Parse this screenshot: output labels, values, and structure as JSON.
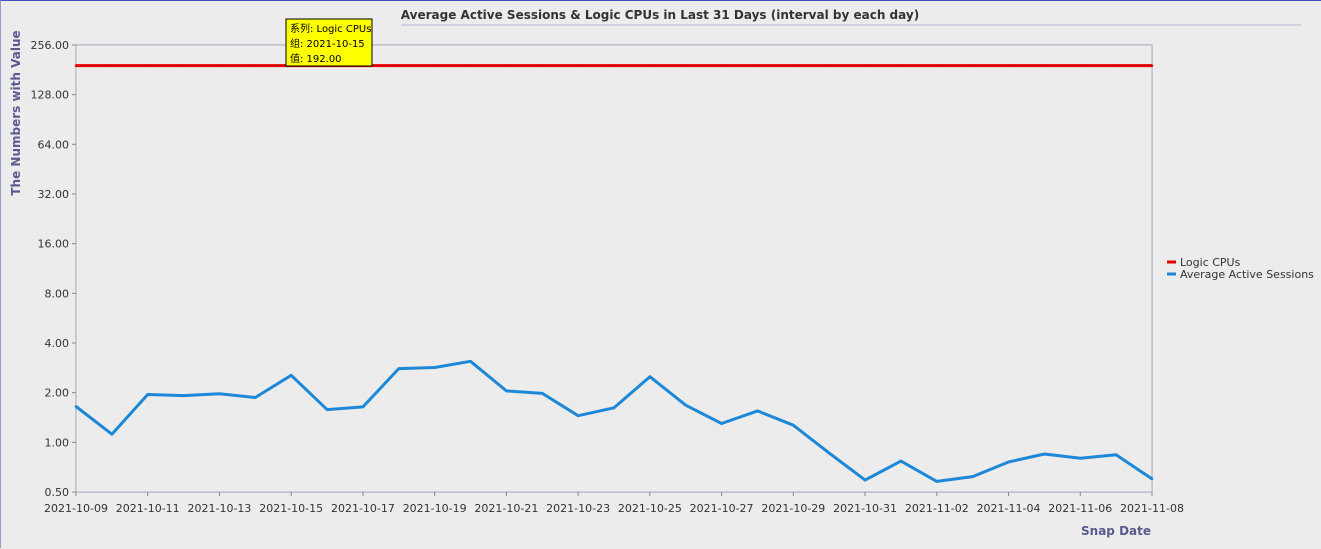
{
  "chart_data": {
    "type": "line",
    "title": "Average Active Sessions & Logic CPUs in Last 31 Days (interval by each day)",
    "xlabel": "Snap Date",
    "ylabel": "The Numbers with Value",
    "yscale": "log2",
    "ylim": [
      0.5,
      256
    ],
    "yticks": [
      "256.00",
      "128.00",
      "64.00",
      "32.00",
      "16.00",
      "8.00",
      "4.00",
      "2.00",
      "1.00",
      "0.50"
    ],
    "ytick_values": [
      256,
      128,
      64,
      32,
      16,
      8,
      4,
      2,
      1,
      0.5
    ],
    "x": [
      "2021-10-09",
      "2021-10-10",
      "2021-10-11",
      "2021-10-12",
      "2021-10-13",
      "2021-10-14",
      "2021-10-15",
      "2021-10-16",
      "2021-10-17",
      "2021-10-18",
      "2021-10-19",
      "2021-10-20",
      "2021-10-21",
      "2021-10-22",
      "2021-10-23",
      "2021-10-24",
      "2021-10-25",
      "2021-10-26",
      "2021-10-27",
      "2021-10-28",
      "2021-10-29",
      "2021-10-30",
      "2021-10-31",
      "2021-11-01",
      "2021-11-02",
      "2021-11-03",
      "2021-11-04",
      "2021-11-05",
      "2021-11-06",
      "2021-11-07",
      "2021-11-08"
    ],
    "xtick_labels": [
      "2021-10-09",
      "2021-10-11",
      "2021-10-13",
      "2021-10-15",
      "2021-10-17",
      "2021-10-19",
      "2021-10-21",
      "2021-10-23",
      "2021-10-25",
      "2021-10-27",
      "2021-10-29",
      "2021-10-31",
      "2021-11-02",
      "2021-11-04",
      "2021-11-06",
      "2021-11-08"
    ],
    "grid": true,
    "legend_position": "right",
    "series": [
      {
        "name": "Logic CPUs",
        "color": "#e00000",
        "values": [
          192,
          192,
          192,
          192,
          192,
          192,
          192,
          192,
          192,
          192,
          192,
          192,
          192,
          192,
          192,
          192,
          192,
          192,
          192,
          192,
          192,
          192,
          192,
          192,
          192,
          192,
          192,
          192,
          192,
          192,
          192
        ]
      },
      {
        "name": "Average Active Sessions",
        "color": "#1e88d8",
        "values": [
          1.65,
          1.12,
          1.95,
          1.92,
          1.97,
          1.87,
          2.55,
          1.58,
          1.64,
          2.8,
          2.84,
          3.1,
          2.05,
          1.98,
          1.45,
          1.62,
          2.5,
          1.68,
          1.3,
          1.55,
          1.27,
          0.86,
          0.59,
          0.77,
          0.58,
          0.62,
          0.76,
          0.85,
          0.8,
          0.84,
          0.6
        ]
      }
    ],
    "tooltip": {
      "series_line": "系列: Logic CPUs",
      "x_line": "组: 2021-10-15",
      "value_line": "值: 192.00"
    }
  }
}
